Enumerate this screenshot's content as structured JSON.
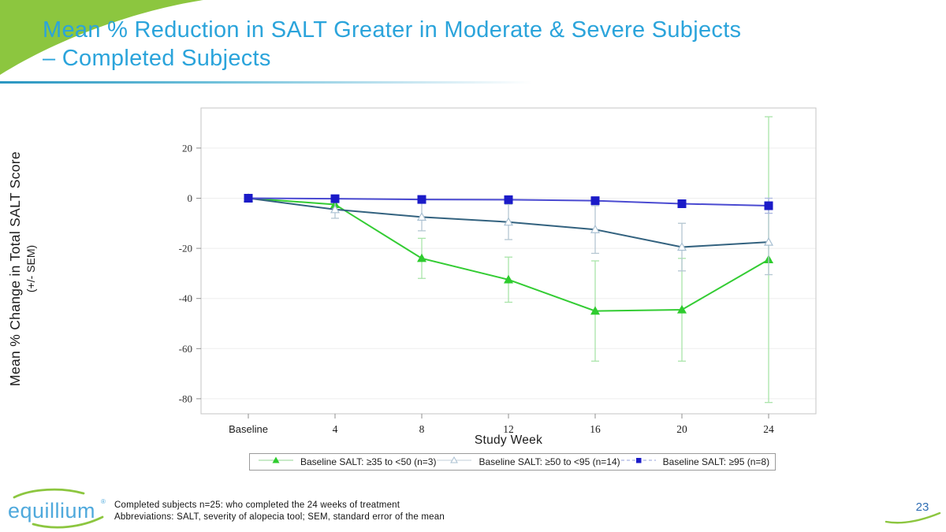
{
  "slide": {
    "title_line1": "Mean % Reduction in SALT Greater in Moderate & Severe Subjects",
    "title_line2": "– Completed Subjects",
    "page_number": "23",
    "logo_text": "equillium",
    "logo_reg": "®",
    "footnote_line1": "Completed subjects n=25: who completed the 24 weeks of treatment",
    "footnote_line2": "Abbreviations: SALT, severity of alopecia tool; SEM, standard error of the mean",
    "colors": {
      "title_blue": "#2BA4DB",
      "accent_green": "#8CC63F",
      "logo_blue": "#4FA9DC",
      "page_number_blue": "#2F6EB4"
    }
  },
  "chart_data": {
    "type": "line",
    "xlabel": "Study Week",
    "ylabel": "Mean % Change in Total SALT  Score",
    "ylabel_sub": "(+/- SEM)",
    "categories": [
      "Baseline",
      "4",
      "8",
      "12",
      "16",
      "20",
      "24"
    ],
    "yticks": [
      20,
      0,
      -20,
      -40,
      -60,
      -80
    ],
    "ylim": [
      -86,
      36
    ],
    "grid": "faint horizontal",
    "legend_position": "bottom boxed",
    "series": [
      {
        "name": "Baseline SALT: ≥35 to <50 (n=3)",
        "marker": "triangle-filled",
        "color": "#33CC33",
        "marker_color": "#2ECC2E",
        "error_color": "#A9E4A9",
        "legend_line": {
          "color": "#B7E3B7",
          "dash": ""
        },
        "values": [
          0,
          -2.5,
          -24,
          -32.5,
          -45,
          -44.5,
          -24.5
        ],
        "sem": [
          0.5,
          3,
          8,
          9,
          20,
          20.5,
          57
        ]
      },
      {
        "name": "Baseline SALT: ≥50 to <95 (n=14)",
        "marker": "triangle-open",
        "color": "#33627F",
        "marker_color": "#A9C0D2",
        "error_color": "#B5C7D2",
        "legend_line": {
          "color": "#D6DFE5",
          "dash": ""
        },
        "values": [
          0,
          -4.5,
          -7.5,
          -9.5,
          -12.5,
          -19.5,
          -17.5
        ],
        "sem": [
          0.5,
          3.5,
          5.5,
          7,
          9.5,
          9.5,
          13
        ]
      },
      {
        "name": "Baseline SALT: ≥95 (n=8)",
        "marker": "square-filled",
        "color": "#4A4AD1",
        "marker_color": "#1B1BC8",
        "error_color": "#AAB6E0",
        "legend_line": {
          "color": "#B9C0E8",
          "dash": "4,3"
        },
        "values": [
          0,
          -0.2,
          -0.5,
          -0.6,
          -1,
          -2.2,
          -3
        ],
        "sem": [
          0.4,
          0.6,
          0.8,
          1,
          1.5,
          1.5,
          3
        ]
      }
    ]
  }
}
